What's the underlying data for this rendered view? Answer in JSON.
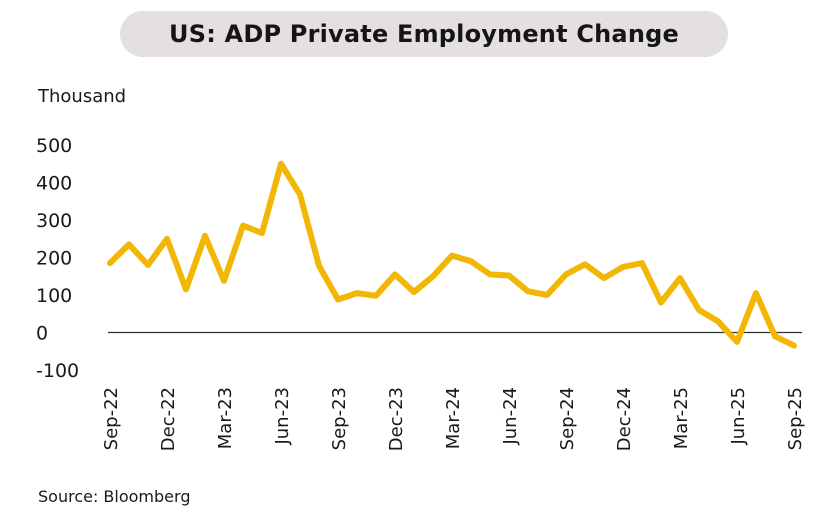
{
  "header": {
    "title": "US: ADP Private Employment Change"
  },
  "footer": {
    "source": "Source: Bloomberg"
  },
  "chart_data": {
    "type": "line",
    "title": "US: ADP Private Employment Change",
    "ylabel": "Thousand",
    "xlabel": "",
    "ylim": [
      -100,
      500
    ],
    "yticks": [
      500,
      400,
      300,
      200,
      100,
      0,
      -100
    ],
    "zero_line": true,
    "grid": false,
    "line_color": "#f2b705",
    "categories": [
      "Sep-22",
      "Oct-22",
      "Nov-22",
      "Dec-22",
      "Jan-23",
      "Feb-23",
      "Mar-23",
      "Apr-23",
      "May-23",
      "Jun-23",
      "Jul-23",
      "Aug-23",
      "Sep-23",
      "Oct-23",
      "Nov-23",
      "Dec-23",
      "Jan-24",
      "Feb-24",
      "Mar-24",
      "Apr-24",
      "May-24",
      "Jun-24",
      "Jul-24",
      "Aug-24",
      "Sep-24",
      "Oct-24",
      "Nov-24",
      "Dec-24",
      "Jan-25",
      "Feb-25",
      "Mar-25",
      "Apr-25",
      "May-25",
      "Jun-25",
      "Jul-25",
      "Aug-25",
      "Sep-25"
    ],
    "x_tick_labels": [
      "Sep-22",
      "Dec-22",
      "Mar-23",
      "Jun-23",
      "Sep-23",
      "Dec-23",
      "Mar-24",
      "Jun-24",
      "Sep-24",
      "Dec-24",
      "Mar-25",
      "Jun-25",
      "Sep-25"
    ],
    "series": [
      {
        "values": [
          185,
          235,
          180,
          250,
          115,
          258,
          138,
          285,
          265,
          450,
          368,
          178,
          88,
          105,
          98,
          155,
          108,
          150,
          205,
          190,
          155,
          152,
          110,
          100,
          155,
          182,
          145,
          175,
          185,
          80,
          145,
          60,
          30,
          -25,
          105,
          -10,
          -35
        ]
      }
    ]
  }
}
